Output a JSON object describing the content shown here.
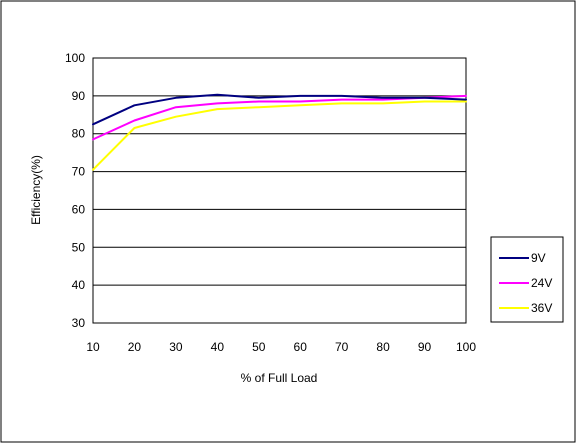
{
  "chart_data": {
    "type": "line",
    "title": "",
    "xlabel": "% of Full Load",
    "ylabel": "Efficiency(%)",
    "xlim": [
      10,
      100
    ],
    "ylim": [
      30,
      100
    ],
    "x": [
      10,
      20,
      30,
      40,
      50,
      60,
      70,
      80,
      90,
      100
    ],
    "x_ticks": [
      "10",
      "20",
      "30",
      "40",
      "50",
      "60",
      "70",
      "80",
      "90",
      "100"
    ],
    "y_ticks": [
      "30",
      "40",
      "50",
      "60",
      "70",
      "80",
      "90",
      "100"
    ],
    "grid": "horizontal",
    "legend_position": "right",
    "series": [
      {
        "name": "9V",
        "color": "#000080",
        "values": [
          82.5,
          87.5,
          89.5,
          90.3,
          89.5,
          90.0,
          90.0,
          89.5,
          89.5,
          89.0
        ]
      },
      {
        "name": "24V",
        "color": "#ff00ff",
        "values": [
          78.5,
          83.5,
          87.0,
          88.0,
          88.5,
          88.5,
          89.0,
          89.0,
          89.5,
          90.0
        ]
      },
      {
        "name": "36V",
        "color": "#ffff00",
        "values": [
          70.5,
          81.5,
          84.5,
          86.5,
          87.0,
          87.5,
          88.0,
          88.0,
          88.5,
          88.5
        ]
      }
    ]
  }
}
